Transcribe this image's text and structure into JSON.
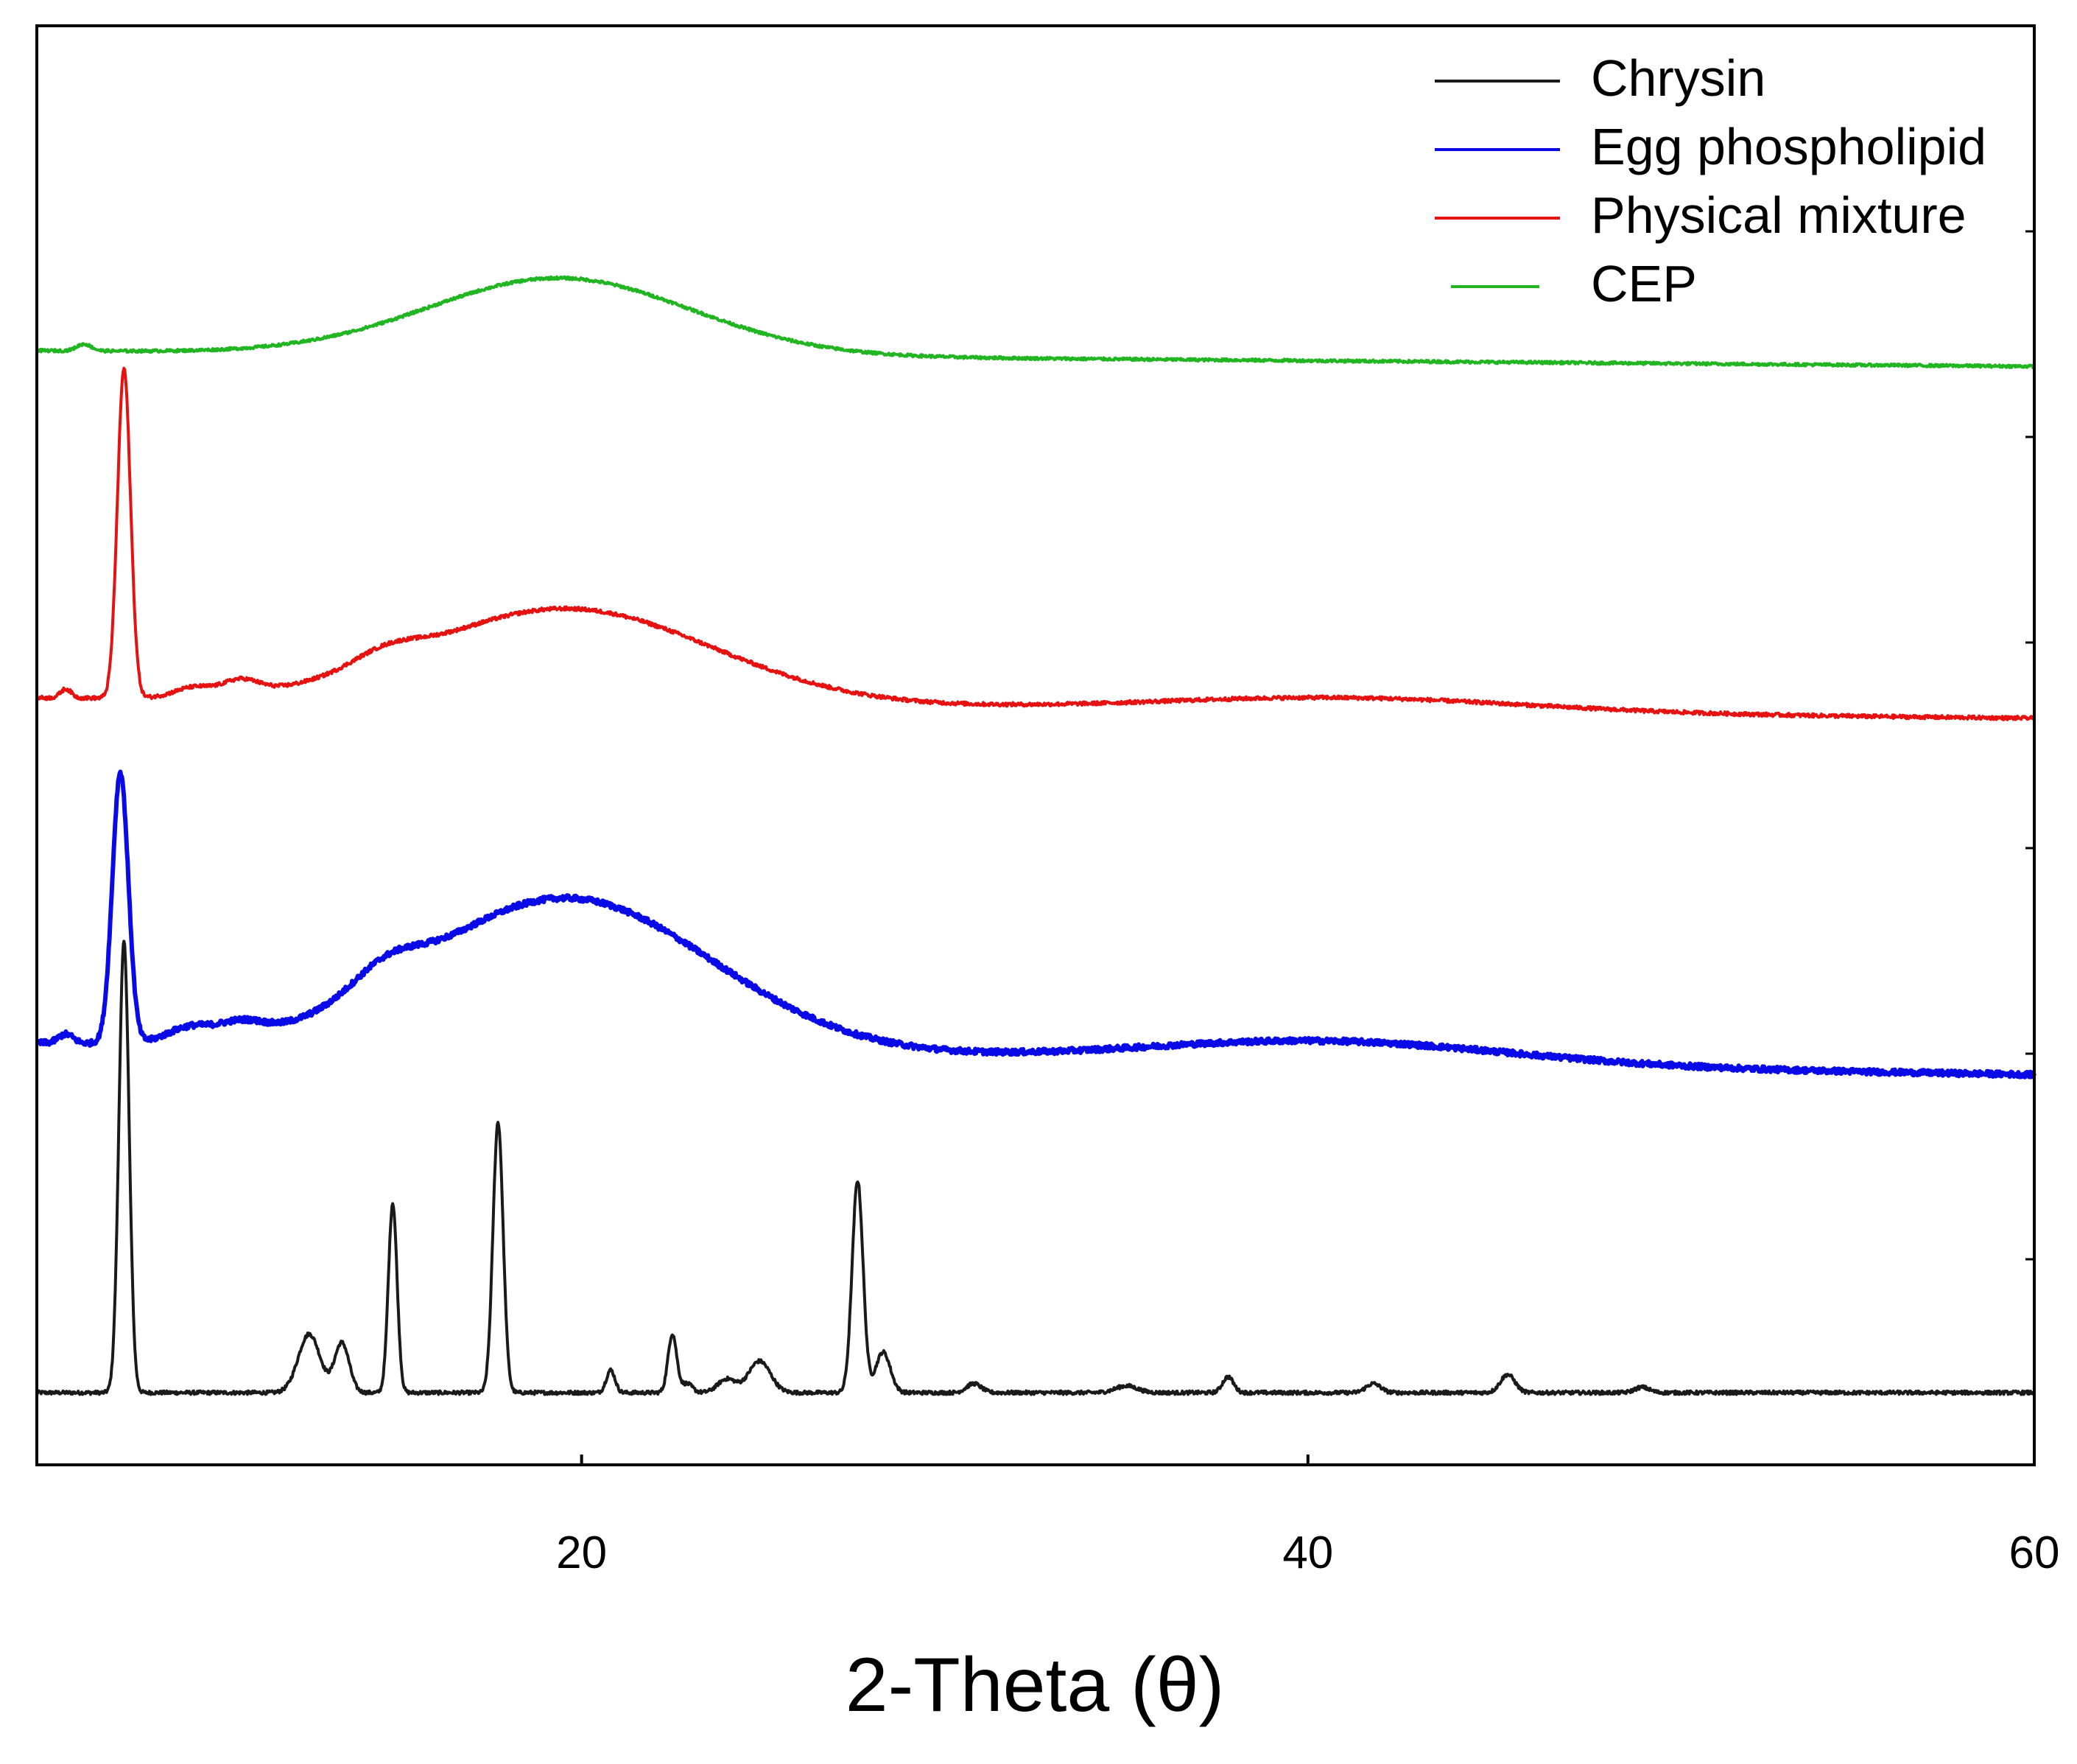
{
  "chart_data": {
    "type": "line",
    "title": "",
    "xlabel": "2-Theta (θ)",
    "ylabel": "",
    "xlim": [
      5,
      60
    ],
    "x_ticks": [
      20,
      40,
      60
    ],
    "x_tick_labels": [
      "20",
      "40",
      "60"
    ],
    "y_tick_count": 6,
    "y_tick_labels_shown": false,
    "grid": false,
    "legend_position": "top-right",
    "colors": {
      "axis": "#000000",
      "background": "#ffffff"
    },
    "series": [
      {
        "name": "Chrysin",
        "color": "#1a1a1a",
        "offset": 0,
        "baseline": 0,
        "noise": 0.004,
        "humps": [],
        "peaks": [
          {
            "x": 7.4,
            "h": 1.0,
            "w": 0.14
          },
          {
            "x": 12.5,
            "h": 0.13,
            "w": 0.3
          },
          {
            "x": 13.4,
            "h": 0.11,
            "w": 0.2
          },
          {
            "x": 14.8,
            "h": 0.42,
            "w": 0.12
          },
          {
            "x": 17.7,
            "h": 0.6,
            "w": 0.14
          },
          {
            "x": 20.8,
            "h": 0.05,
            "w": 0.12
          },
          {
            "x": 22.5,
            "h": 0.13,
            "w": 0.12
          },
          {
            "x": 22.9,
            "h": 0.02,
            "w": 0.15
          },
          {
            "x": 24.0,
            "h": 0.03,
            "w": 0.25
          },
          {
            "x": 24.9,
            "h": 0.07,
            "w": 0.3
          },
          {
            "x": 27.6,
            "h": 0.47,
            "w": 0.15
          },
          {
            "x": 28.3,
            "h": 0.09,
            "w": 0.2
          },
          {
            "x": 30.8,
            "h": 0.02,
            "w": 0.2
          },
          {
            "x": 35.0,
            "h": 0.015,
            "w": 0.3
          },
          {
            "x": 37.8,
            "h": 0.035,
            "w": 0.15
          },
          {
            "x": 41.8,
            "h": 0.02,
            "w": 0.2
          },
          {
            "x": 45.5,
            "h": 0.04,
            "w": 0.2
          },
          {
            "x": 49.2,
            "h": 0.012,
            "w": 0.2
          }
        ]
      },
      {
        "name": "Egg phospholipid",
        "color": "#0a0ae6",
        "offset": 0.775,
        "baseline": 0.0,
        "noise": 0.006,
        "humps": [
          {
            "x": 19.6,
            "h": 0.34,
            "w": 4.0
          },
          {
            "x": 14.6,
            "h": 0.05,
            "w": 0.9
          },
          {
            "x": 10.6,
            "h": 0.03,
            "w": 0.6
          },
          {
            "x": 9.2,
            "h": 0.03,
            "w": 0.6
          },
          {
            "x": 40.5,
            "h": 0.05,
            "w": 5.0
          }
        ],
        "peaks": [
          {
            "x": 7.3,
            "h": 0.6,
            "w": 0.22
          },
          {
            "x": 5.8,
            "h": 0.02,
            "w": 0.2
          }
        ],
        "tilt": -0.07
      },
      {
        "name": "Physical mixture",
        "color": "#e61111",
        "offset": 1.54,
        "baseline": 0.0,
        "noise": 0.004,
        "humps": [
          {
            "x": 19.6,
            "h": 0.21,
            "w": 4.0
          },
          {
            "x": 14.6,
            "h": 0.03,
            "w": 0.9
          },
          {
            "x": 10.6,
            "h": 0.03,
            "w": 0.5
          },
          {
            "x": 9.3,
            "h": 0.02,
            "w": 0.5
          },
          {
            "x": 41.0,
            "h": 0.03,
            "w": 5.0
          }
        ],
        "peaks": [
          {
            "x": 7.4,
            "h": 0.73,
            "w": 0.18
          },
          {
            "x": 5.8,
            "h": 0.02,
            "w": 0.15
          }
        ],
        "tilt": -0.045
      },
      {
        "name": "CEP",
        "color": "#22b522",
        "offset": 2.31,
        "baseline": 0.0,
        "noise": 0.003,
        "humps": [
          {
            "x": 19.4,
            "h": 0.17,
            "w": 3.6
          }
        ],
        "peaks": [
          {
            "x": 6.3,
            "h": 0.015,
            "w": 0.2
          }
        ],
        "tilt": -0.035
      }
    ],
    "ylim": [
      -0.16,
      3.03
    ]
  }
}
